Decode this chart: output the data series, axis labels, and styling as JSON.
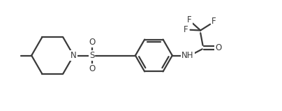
{
  "background_color": "#ffffff",
  "line_color": "#3a3a3a",
  "line_width": 1.6,
  "figsize": [
    4.04,
    1.59
  ],
  "dpi": 100,
  "font_size": 8.5,
  "font_color": "#3a3a3a",
  "xlim": [
    0,
    11
  ],
  "ylim": [
    0,
    4.3
  ]
}
